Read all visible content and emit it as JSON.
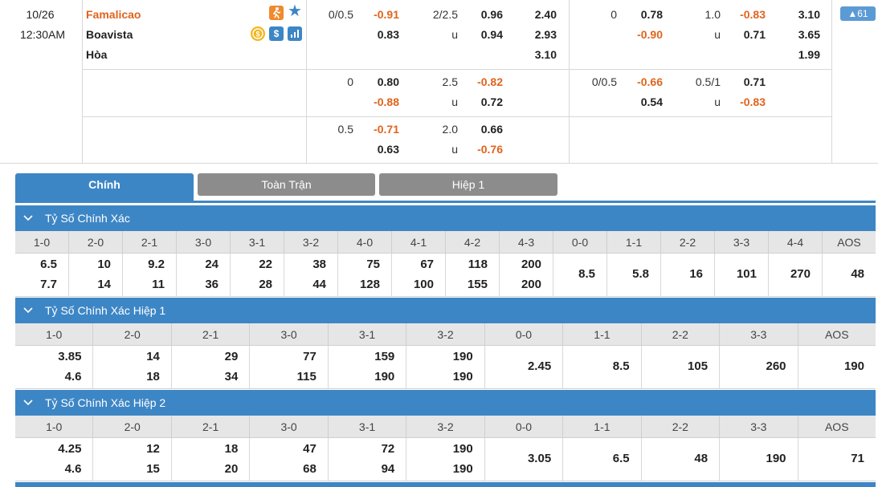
{
  "match": {
    "date": "10/26",
    "time": "12:30AM",
    "home": "Famalicao",
    "away": "Boavista",
    "draw": "Hòa",
    "more_count": "▲61"
  },
  "odds_rows": [
    {
      "ft_hdp": {
        "line": "0/0.5",
        "home": "-0.91",
        "away": "0.83"
      },
      "ft_ou": {
        "line": "2/2.5",
        "over": "0.96",
        "under_label": "u",
        "under": "0.94"
      },
      "ft_1x2": {
        "home": "2.40",
        "away": "2.93",
        "draw": "3.10"
      },
      "h1_hdp": {
        "line": "0",
        "home": "0.78",
        "away": "-0.90"
      },
      "h1_ou": {
        "line": "1.0",
        "over": "-0.83",
        "under_label": "u",
        "under": "0.71"
      },
      "h1_1x2": {
        "home": "3.10",
        "away": "3.65",
        "draw": "1.99"
      }
    },
    {
      "ft_hdp": {
        "line": "0",
        "home": "0.80",
        "away": "-0.88"
      },
      "ft_ou": {
        "line": "2.5",
        "over": "-0.82",
        "under_label": "u",
        "under": "0.72"
      },
      "h1_hdp": {
        "line": "0/0.5",
        "home": "-0.66",
        "away": "0.54"
      },
      "h1_ou": {
        "line": "0.5/1",
        "over": "0.71",
        "under_label": "u",
        "under": "-0.83"
      }
    },
    {
      "ft_hdp": {
        "line": "0.5",
        "home": "-0.71",
        "away": "0.63"
      },
      "ft_ou": {
        "line": "2.0",
        "over": "0.66",
        "under_label": "u",
        "under": "-0.76"
      }
    }
  ],
  "icons": [
    "running-icon",
    "star-icon",
    "money-icon",
    "dollar-icon",
    "stats-icon"
  ],
  "colors": {
    "accent": "#3d86c6",
    "negative": "#e0641c",
    "home_team": "#e0641c"
  },
  "tabs": [
    {
      "label": "Chính",
      "active": true
    },
    {
      "label": "Toàn Trận",
      "active": false
    },
    {
      "label": "Hiệp 1",
      "active": false
    }
  ],
  "sections": [
    {
      "title": "Tỷ Số Chính Xác",
      "columns": [
        "1-0",
        "2-0",
        "2-1",
        "3-0",
        "3-1",
        "3-2",
        "4-0",
        "4-1",
        "4-2",
        "4-3",
        "0-0",
        "1-1",
        "2-2",
        "3-3",
        "4-4",
        "AOS"
      ],
      "values": [
        [
          "6.5",
          "7.7"
        ],
        [
          "10",
          "14"
        ],
        [
          "9.2",
          "11"
        ],
        [
          "24",
          "36"
        ],
        [
          "22",
          "28"
        ],
        [
          "38",
          "44"
        ],
        [
          "75",
          "128"
        ],
        [
          "67",
          "100"
        ],
        [
          "118",
          "155"
        ],
        [
          "200",
          "200"
        ],
        [
          "8.5"
        ],
        [
          "5.8"
        ],
        [
          "16"
        ],
        [
          "101"
        ],
        [
          "270"
        ],
        [
          "48"
        ]
      ]
    },
    {
      "title": "Tỷ Số Chính Xác Hiệp 1",
      "columns": [
        "1-0",
        "2-0",
        "2-1",
        "3-0",
        "3-1",
        "3-2",
        "0-0",
        "1-1",
        "2-2",
        "3-3",
        "AOS"
      ],
      "values": [
        [
          "3.85",
          "4.6"
        ],
        [
          "14",
          "18"
        ],
        [
          "29",
          "34"
        ],
        [
          "77",
          "115"
        ],
        [
          "159",
          "190"
        ],
        [
          "190",
          "190"
        ],
        [
          "2.45"
        ],
        [
          "8.5"
        ],
        [
          "105"
        ],
        [
          "260"
        ],
        [
          "190"
        ]
      ]
    },
    {
      "title": "Tỷ Số Chính Xác Hiệp 2",
      "columns": [
        "1-0",
        "2-0",
        "2-1",
        "3-0",
        "3-1",
        "3-2",
        "0-0",
        "1-1",
        "2-2",
        "3-3",
        "AOS"
      ],
      "values": [
        [
          "4.25",
          "4.6"
        ],
        [
          "12",
          "15"
        ],
        [
          "18",
          "20"
        ],
        [
          "47",
          "68"
        ],
        [
          "72",
          "94"
        ],
        [
          "190",
          "190"
        ],
        [
          "3.05"
        ],
        [
          "6.5"
        ],
        [
          "48"
        ],
        [
          "190"
        ],
        [
          "71"
        ]
      ]
    }
  ]
}
